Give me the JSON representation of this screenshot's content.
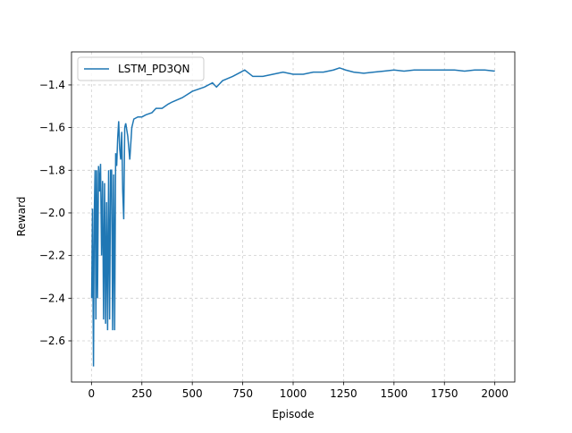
{
  "chart_data": {
    "type": "line",
    "x_label": "Episode",
    "y_label": "Reward",
    "xlim": [
      -99,
      2099
    ],
    "ylim": [
      -2.793,
      -1.245
    ],
    "xticks": [
      0,
      250,
      500,
      750,
      1000,
      1250,
      1500,
      1750,
      2000
    ],
    "yticks": [
      {
        "value": -2.6,
        "label": "−2.6"
      },
      {
        "value": -2.4,
        "label": "−2.4"
      },
      {
        "value": -2.2,
        "label": "−2.2"
      },
      {
        "value": -2.0,
        "label": "−2.0"
      },
      {
        "value": -1.8,
        "label": "−1.8"
      },
      {
        "value": -1.6,
        "label": "−1.6"
      },
      {
        "value": -1.4,
        "label": "−1.4"
      }
    ],
    "grid": true,
    "legend": "upper left",
    "x": [
      1,
      5,
      10,
      14,
      18,
      22,
      26,
      30,
      35,
      40,
      45,
      50,
      55,
      60,
      65,
      70,
      75,
      80,
      85,
      90,
      95,
      100,
      105,
      110,
      115,
      120,
      125,
      130,
      135,
      140,
      145,
      150,
      155,
      160,
      165,
      170,
      180,
      190,
      200,
      210,
      230,
      250,
      270,
      300,
      320,
      350,
      380,
      400,
      450,
      500,
      530,
      560,
      600,
      620,
      650,
      700,
      740,
      760,
      800,
      850,
      900,
      950,
      1000,
      1050,
      1100,
      1150,
      1200,
      1230,
      1260,
      1300,
      1350,
      1400,
      1450,
      1500,
      1550,
      1600,
      1650,
      1700,
      1750,
      1800,
      1850,
      1900,
      1950,
      2000
    ],
    "series": [
      {
        "name": "LSTM_PD3QN",
        "color": "#1f77b4",
        "values": [
          -2.4,
          -1.98,
          -2.72,
          -2.0,
          -1.8,
          -2.5,
          -1.8,
          -2.4,
          -1.78,
          -1.9,
          -1.77,
          -2.2,
          -1.85,
          -2.5,
          -1.86,
          -2.52,
          -1.95,
          -2.55,
          -1.8,
          -2.5,
          -1.8,
          -1.8,
          -2.55,
          -1.82,
          -2.55,
          -1.72,
          -1.78,
          -1.65,
          -1.57,
          -1.7,
          -1.75,
          -1.62,
          -1.9,
          -2.03,
          -1.6,
          -1.58,
          -1.64,
          -1.75,
          -1.6,
          -1.56,
          -1.55,
          -1.55,
          -1.54,
          -1.53,
          -1.51,
          -1.51,
          -1.49,
          -1.48,
          -1.46,
          -1.43,
          -1.42,
          -1.41,
          -1.39,
          -1.41,
          -1.38,
          -1.36,
          -1.34,
          -1.33,
          -1.36,
          -1.36,
          -1.35,
          -1.34,
          -1.35,
          -1.35,
          -1.34,
          -1.34,
          -1.33,
          -1.32,
          -1.33,
          -1.34,
          -1.345,
          -1.34,
          -1.335,
          -1.33,
          -1.335,
          -1.33,
          -1.33,
          -1.33,
          -1.33,
          -1.33,
          -1.335,
          -1.33,
          -1.33,
          -1.335
        ]
      }
    ]
  }
}
